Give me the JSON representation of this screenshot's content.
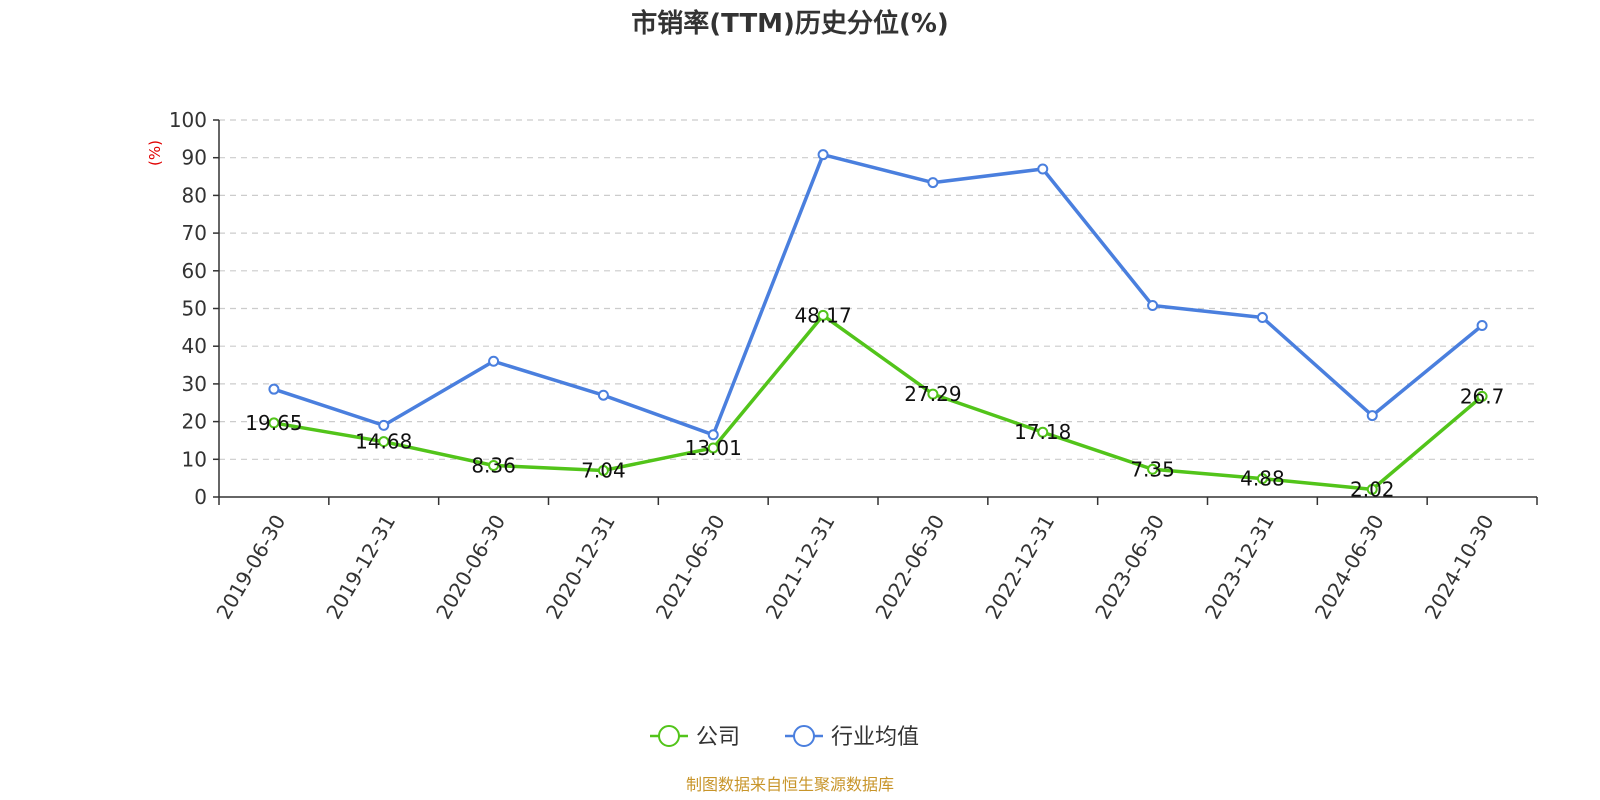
{
  "chart_data": {
    "type": "line",
    "title": "市销率(TTM)历史分位(%)",
    "ylabel": "(%)",
    "ylim": [
      0,
      100
    ],
    "yticks": [
      0,
      10,
      20,
      30,
      40,
      50,
      60,
      70,
      80,
      90,
      100
    ],
    "grid": true,
    "legend_position": "bottom",
    "categories": [
      "2019-06-30",
      "2019-12-31",
      "2020-06-30",
      "2020-12-31",
      "2021-06-30",
      "2021-12-31",
      "2022-06-30",
      "2022-12-31",
      "2023-06-30",
      "2023-12-31",
      "2024-06-30",
      "2024-10-30"
    ],
    "series": [
      {
        "name": "公司",
        "color": "#52c41a",
        "show_labels": true,
        "values": [
          19.65,
          14.68,
          8.36,
          7.04,
          13.01,
          48.17,
          27.29,
          17.18,
          7.35,
          4.88,
          2.02,
          26.7
        ]
      },
      {
        "name": "行业均值",
        "color": "#4a7fde",
        "show_labels": false,
        "values": [
          28.6,
          19.0,
          36.0,
          27.0,
          16.5,
          90.8,
          83.4,
          87.0,
          50.8,
          47.6,
          21.6,
          45.5
        ]
      }
    ],
    "colors": {
      "title": "#333333",
      "ylabel": "#e00000",
      "source": "#c8952a",
      "axis": "#333333",
      "grid": "#cccccc"
    }
  },
  "footer": {
    "source": "制图数据来自恒生聚源数据库"
  }
}
